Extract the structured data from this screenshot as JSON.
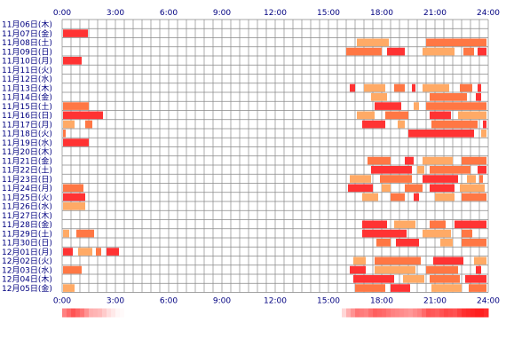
{
  "chart_data": {
    "type": "heatmap",
    "x_ticks": [
      "0:00",
      "3:00",
      "6:00",
      "9:00",
      "12:00",
      "15:00",
      "18:00",
      "21:00",
      "24:00"
    ],
    "x_range_hours": [
      0,
      24
    ],
    "grid": true,
    "grid_step_minutes": 30,
    "colors": {
      "grid": "#888888",
      "bar": "#ff7744",
      "bar_dark": "#ff3333",
      "bar_light": "#ffaa66",
      "text": "#000080"
    },
    "rows": [
      {
        "label": "11月06日(木)",
        "segments": []
      },
      {
        "label": "11月07日(金)",
        "segments": [
          [
            0.05,
            1.45
          ]
        ]
      },
      {
        "label": "11月08日(土)",
        "segments": [
          [
            16.6,
            18.4
          ],
          [
            20.5,
            23.9
          ]
        ]
      },
      {
        "label": "11月09日(日)",
        "segments": [
          [
            16.0,
            18.0
          ],
          [
            18.3,
            19.3
          ],
          [
            20.3,
            22.1
          ],
          [
            22.6,
            23.2
          ],
          [
            23.4,
            23.9
          ]
        ]
      },
      {
        "label": "11月10日(月)",
        "segments": [
          [
            0.05,
            1.1
          ]
        ]
      },
      {
        "label": "11月11日(火)",
        "segments": []
      },
      {
        "label": "11月12日(水)",
        "segments": []
      },
      {
        "label": "11月13日(木)",
        "segments": [
          [
            16.2,
            16.5
          ],
          [
            17.0,
            18.2
          ],
          [
            18.7,
            19.3
          ],
          [
            19.7,
            19.9
          ],
          [
            20.3,
            21.8
          ],
          [
            22.4,
            23.1
          ],
          [
            23.4,
            23.6
          ]
        ]
      },
      {
        "label": "11月14日(金)",
        "segments": [
          [
            17.4,
            18.3
          ],
          [
            20.7,
            22.8
          ],
          [
            23.3,
            23.6
          ]
        ]
      },
      {
        "label": "11月15日(土)",
        "segments": [
          [
            0.05,
            1.5
          ],
          [
            17.6,
            19.1
          ],
          [
            19.8,
            20.1
          ],
          [
            20.5,
            23.9
          ]
        ]
      },
      {
        "label": "11月16日(日)",
        "segments": [
          [
            0.05,
            2.3
          ],
          [
            16.6,
            17.6
          ],
          [
            18.2,
            19.5
          ],
          [
            20.7,
            21.9
          ],
          [
            22.3,
            23.9
          ]
        ]
      },
      {
        "label": "11月17日(月)",
        "segments": [
          [
            0.05,
            0.7
          ],
          [
            1.3,
            1.7
          ],
          [
            16.9,
            18.2
          ],
          [
            18.9,
            19.3
          ],
          [
            20.8,
            23.4
          ],
          [
            23.7,
            23.9
          ]
        ]
      },
      {
        "label": "11月18日(火)",
        "segments": [
          [
            0.05,
            0.2
          ],
          [
            19.5,
            23.2
          ],
          [
            23.6,
            23.9
          ]
        ]
      },
      {
        "label": "11月19日(水)",
        "segments": [
          [
            0.05,
            1.5
          ]
        ]
      },
      {
        "label": "11月20日(木)",
        "segments": []
      },
      {
        "label": "11月21日(金)",
        "segments": [
          [
            17.2,
            18.5
          ],
          [
            19.3,
            19.8
          ],
          [
            20.3,
            22.0
          ],
          [
            22.5,
            23.9
          ]
        ]
      },
      {
        "label": "11月22日(土)",
        "segments": [
          [
            17.4,
            19.7
          ],
          [
            20.0,
            20.4
          ],
          [
            20.7,
            23.0
          ],
          [
            23.4,
            23.9
          ]
        ]
      },
      {
        "label": "11月23日(日)",
        "segments": [
          [
            16.2,
            17.4
          ],
          [
            17.9,
            19.7
          ],
          [
            20.3,
            22.3
          ],
          [
            22.8,
            23.3
          ],
          [
            23.5,
            23.7
          ]
        ]
      },
      {
        "label": "11月24日(月)",
        "segments": [
          [
            0.05,
            1.2
          ],
          [
            16.1,
            17.5
          ],
          [
            18.0,
            18.5
          ],
          [
            19.3,
            20.3
          ],
          [
            20.7,
            22.1
          ],
          [
            22.4,
            23.8
          ]
        ]
      },
      {
        "label": "11月25日(火)",
        "segments": [
          [
            0.05,
            1.3
          ],
          [
            16.9,
            17.8
          ],
          [
            18.5,
            19.3
          ],
          [
            19.8,
            20.1
          ],
          [
            21.0,
            22.1
          ],
          [
            22.5,
            23.9
          ]
        ]
      },
      {
        "label": "11月26日(水)",
        "segments": [
          [
            0.05,
            1.3
          ]
        ]
      },
      {
        "label": "11月27日(木)",
        "segments": []
      },
      {
        "label": "11月28日(金)",
        "segments": [
          [
            16.9,
            18.3
          ],
          [
            18.7,
            19.9
          ],
          [
            20.7,
            21.6
          ],
          [
            22.1,
            23.9
          ]
        ]
      },
      {
        "label": "11月29日(土)",
        "segments": [
          [
            0.05,
            0.4
          ],
          [
            0.8,
            1.8
          ],
          [
            16.9,
            19.4
          ],
          [
            20.3,
            21.9
          ],
          [
            22.5,
            23.1
          ]
        ]
      },
      {
        "label": "11月30日(日)",
        "segments": [
          [
            17.7,
            18.5
          ],
          [
            18.8,
            20.1
          ],
          [
            21.3,
            22.0
          ],
          [
            22.5,
            23.9
          ]
        ]
      },
      {
        "label": "12月01日(月)",
        "segments": [
          [
            0.05,
            0.6
          ],
          [
            0.9,
            1.7
          ],
          [
            1.9,
            2.2
          ],
          [
            2.5,
            3.2
          ]
        ]
      },
      {
        "label": "12月02日(火)",
        "segments": [
          [
            16.4,
            17.1
          ],
          [
            17.6,
            20.2
          ],
          [
            20.9,
            22.6
          ],
          [
            23.2,
            23.9
          ]
        ]
      },
      {
        "label": "12月03日(水)",
        "segments": [
          [
            0.05,
            1.1
          ],
          [
            16.2,
            17.1
          ],
          [
            17.6,
            19.9
          ],
          [
            20.5,
            22.3
          ],
          [
            23.3,
            23.6
          ]
        ]
      },
      {
        "label": "12月04日(木)",
        "segments": [
          [
            16.4,
            18.7
          ],
          [
            19.2,
            20.4
          ],
          [
            20.7,
            22.4
          ],
          [
            22.7,
            23.9
          ]
        ]
      },
      {
        "label": "12月05日(金)",
        "segments": [
          [
            0.05,
            0.7
          ],
          [
            16.5,
            18.2
          ],
          [
            18.5,
            19.6
          ],
          [
            20.8,
            22.5
          ],
          [
            22.9,
            23.9
          ]
        ]
      }
    ],
    "density_strip": [
      [
        0.0,
        0.55
      ],
      [
        0.5,
        0.75
      ],
      [
        1.0,
        0.6
      ],
      [
        1.5,
        0.35
      ],
      [
        2.0,
        0.3
      ],
      [
        2.5,
        0.15
      ],
      [
        3.0,
        0.04
      ],
      [
        3.5,
        0.0
      ],
      [
        15.5,
        0.0
      ],
      [
        16.0,
        0.35
      ],
      [
        16.5,
        0.6
      ],
      [
        17.0,
        0.55
      ],
      [
        17.5,
        0.7
      ],
      [
        18.0,
        0.65
      ],
      [
        18.5,
        0.55
      ],
      [
        19.0,
        0.5
      ],
      [
        19.5,
        0.45
      ],
      [
        20.0,
        0.55
      ],
      [
        20.5,
        0.75
      ],
      [
        21.0,
        0.7
      ],
      [
        21.5,
        0.8
      ],
      [
        22.0,
        0.75
      ],
      [
        22.5,
        0.9
      ],
      [
        23.0,
        0.95
      ],
      [
        23.5,
        1.0
      ],
      [
        24.0,
        0.85
      ]
    ]
  }
}
